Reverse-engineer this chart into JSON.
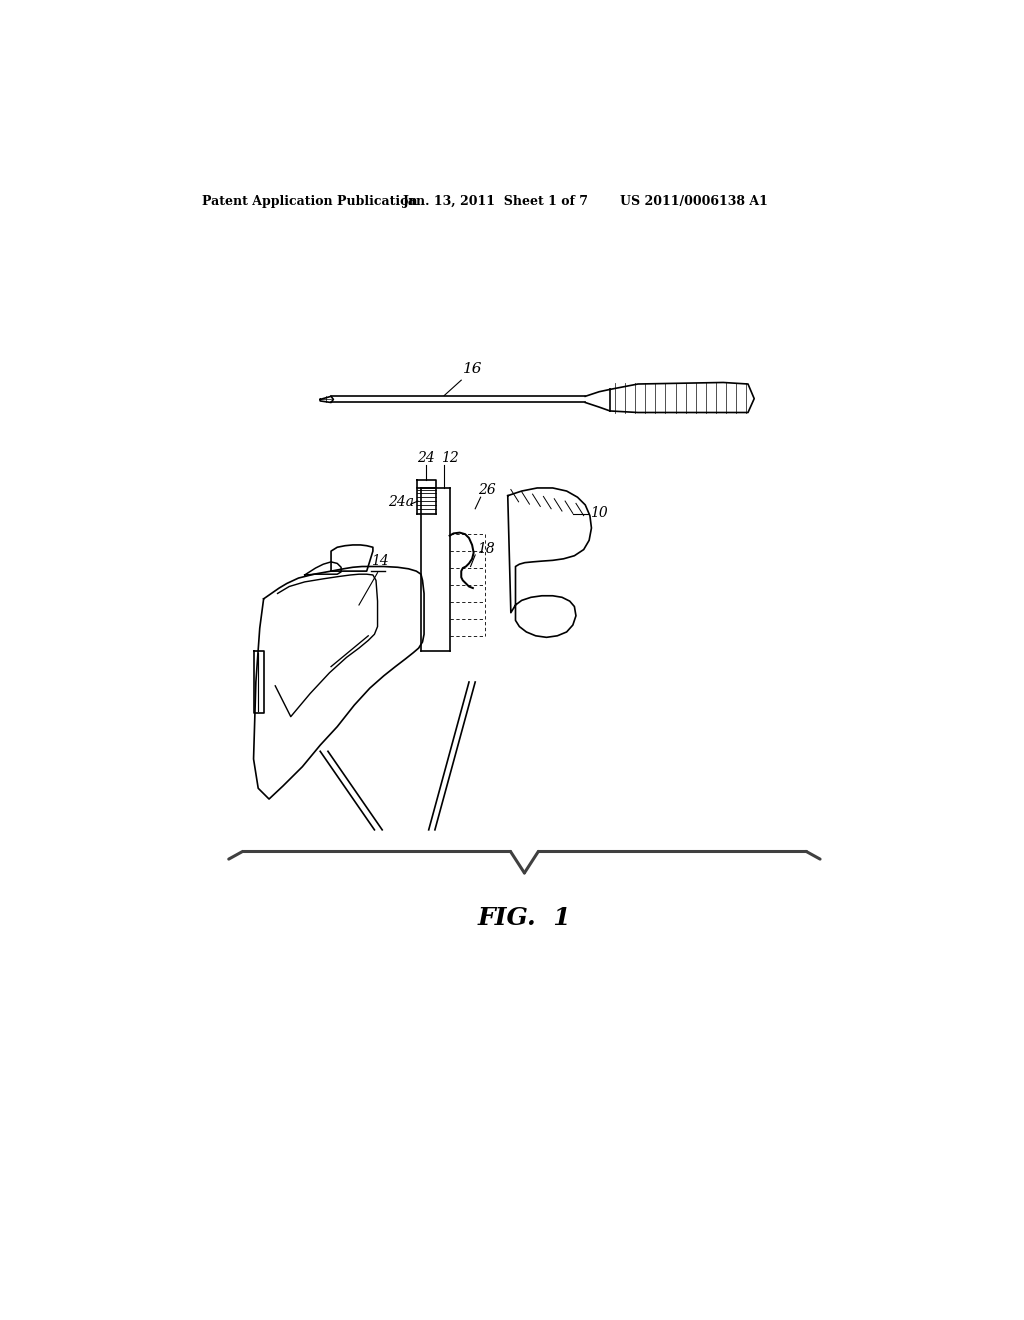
{
  "title_left": "Patent Application Publication",
  "title_mid": "Jan. 13, 2011  Sheet 1 of 7",
  "title_right": "US 2011/0006138 A1",
  "fig_label": "FIG.  1",
  "bg_color": "#ffffff",
  "line_color": "#000000",
  "bracket_color": "#404040"
}
